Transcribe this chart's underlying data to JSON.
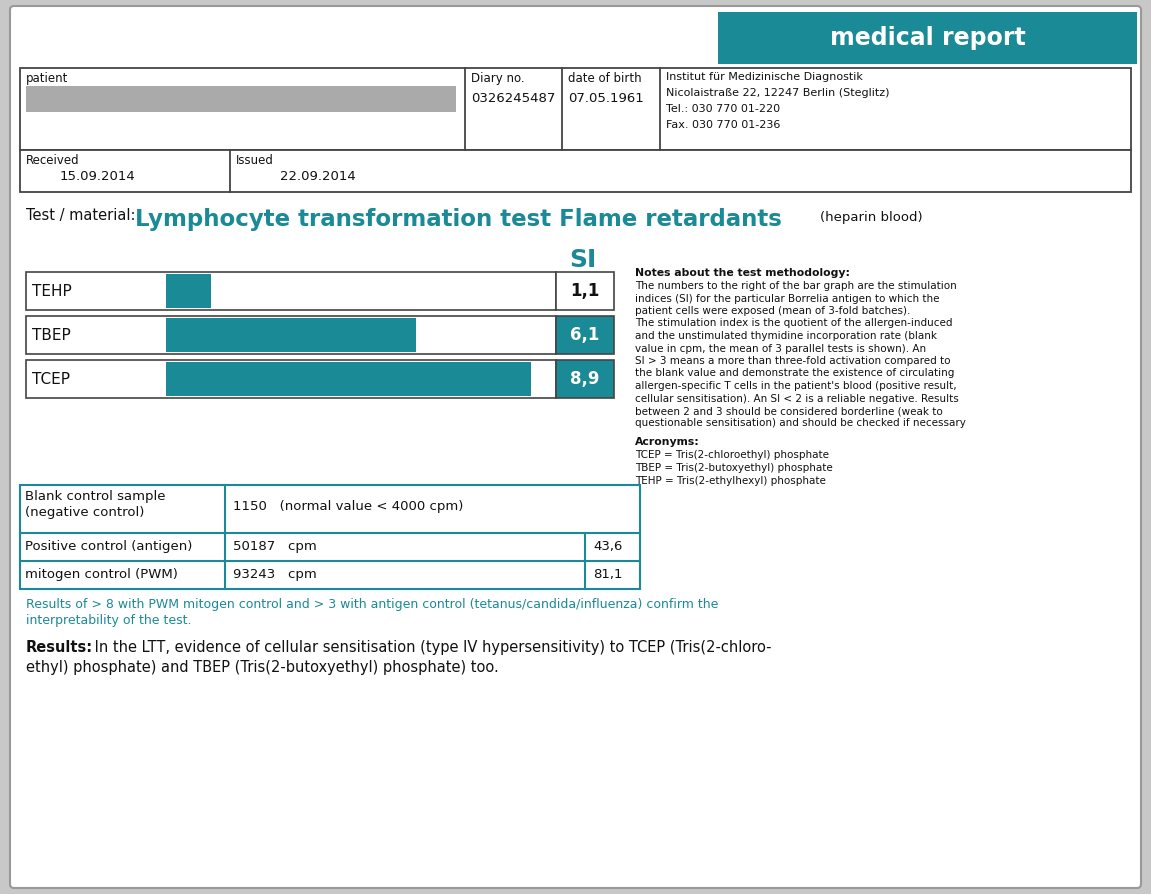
{
  "title_box_color": "#1a8a96",
  "title_box_text": "medical report",
  "title_box_text_color": "#ffffff",
  "background_color": "#ffffff",
  "outer_bg_color": "#c8c8c8",
  "teal_color": "#1a8a96",
  "dark_text_color": "#111111",
  "gray_bar_color": "#aaaaaa",
  "diary_no": "0326245487",
  "dob": "07.05.1961",
  "institute_lines": [
    "Institut für Medizinische Diagnostik",
    "Nicolaistraße 22, 12247 Berlin (Steglitz)",
    "Tel.: 030 770 01-220",
    "Fax. 030 770 01-236"
  ],
  "received": "15.09.2014",
  "issued": "22.09.2014",
  "test_label": "Test / material:",
  "test_title": "Lymphocyte transformation test Flame retardants",
  "test_subtitle": "(heparin blood)",
  "bar_labels": [
    "TEHP",
    "TBEP",
    "TCEP"
  ],
  "bar_values": [
    1.1,
    6.1,
    8.9
  ],
  "bar_max": 9.5,
  "si_label": "SI",
  "si_values": [
    "1,1",
    "6,1",
    "8,9"
  ],
  "notes_title": "Notes about the test methodology:",
  "notes_lines": [
    "The numbers to the right of the bar graph are the stimulation",
    "indices (SI) for the particular Borrelia antigen to which the",
    "patient cells were exposed (mean of 3-fold batches).",
    "The stimulation index is the quotient of the allergen-induced",
    "and the unstimulated thymidine incorporation rate (blank",
    "value in cpm, the mean of 3 parallel tests is shown). An",
    "SI > 3 means a more than three-fold activation compared to",
    "the blank value and demonstrate the existence of circulating",
    "allergen-specific T cells in the patient's blood (positive result,",
    "cellular sensitisation). An SI < 2 is a reliable negative. Results",
    "between 2 and 3 should be considered borderline (weak to",
    "questionable sensitisation) and should be checked if necessary"
  ],
  "acronyms_title": "Acronyms:",
  "acronyms": [
    "TCEP = Tris(2-chloroethyl) phosphate",
    "TBEP = Tris(2-butoxyethyl) phosphate",
    "TEHP = Tris(2-ethylhexyl) phosphate"
  ],
  "row1_label1": "Blank control sample",
  "row1_label2": "(negative control)",
  "row1_value": "1150   (normal value < 4000 cpm)",
  "row2_label": "Positive control (antigen)",
  "row2_value1": "50187   cpm",
  "row2_value2": "43,6",
  "row3_label": "mitogen control (PWM)",
  "row3_value1": "93243   cpm",
  "row3_value2": "81,1",
  "interp_line1": "Results of > 8 with PWM mitogen control and > 3 with antigen control (tetanus/candida/influenza) confirm the",
  "interp_line2": "interpretability of the test.",
  "results_bold": "Results:",
  "results_line1": " In the LTT, evidence of cellular sensitisation (type IV hypersensitivity) to TCEP (Tris(2-chloro-",
  "results_line2": "ethyl) phosphate) and TBEP (Tris(2-butoxyethyl) phosphate) too."
}
